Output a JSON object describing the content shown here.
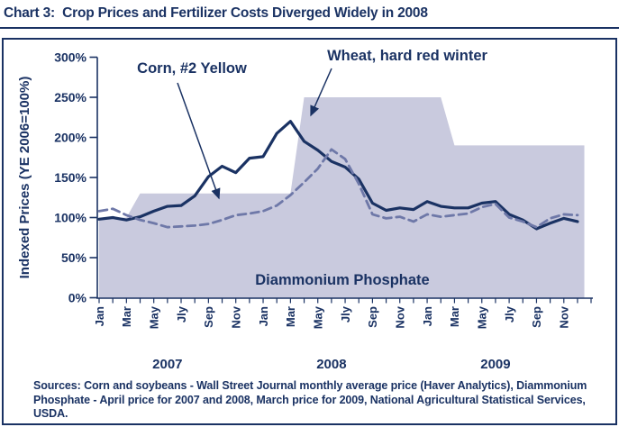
{
  "title": "Chart 3:  Crop Prices and Fertilizer Costs Diverged Widely in 2008",
  "colors": {
    "ink": "#1a3263",
    "wheat_line": "#1a3263",
    "corn_line": "#6e78a8",
    "dap_fill": "#c9cade",
    "background": "#ffffff"
  },
  "chart_data": {
    "type": "line",
    "title": "Chart 3:  Crop Prices and Fertilizer Costs Diverged Widely in 2008",
    "xlabel": "",
    "ylabel": "Indexed Prices (YE 2006=100%)",
    "ylim": [
      0,
      300
    ],
    "grid": false,
    "legend_position": "inline-annotations",
    "ytick_labels": [
      "0%",
      "50%",
      "100%",
      "150%",
      "200%",
      "250%",
      "300%"
    ],
    "month_tick_labels": [
      "Jan",
      "Mar",
      "May",
      "Jly",
      "Sep",
      "Nov"
    ],
    "years": [
      "2007",
      "2008",
      "2009"
    ],
    "x_months": 36,
    "series": [
      {
        "name": "Wheat, hard red winter",
        "type": "line",
        "style": "solid",
        "color": "#1a3263",
        "values": [
          98,
          100,
          97,
          101,
          108,
          114,
          115,
          127,
          151,
          164,
          156,
          174,
          176,
          205,
          220,
          195,
          184,
          170,
          163,
          148,
          118,
          109,
          112,
          110,
          120,
          114,
          112,
          112,
          118,
          120,
          104,
          97,
          86,
          93,
          99,
          95
        ]
      },
      {
        "name": "Corn, #2 Yellow",
        "type": "line",
        "style": "dashed",
        "color": "#6e78a8",
        "values": [
          108,
          111,
          103,
          97,
          93,
          88,
          89,
          90,
          92,
          97,
          103,
          105,
          108,
          115,
          128,
          144,
          161,
          185,
          173,
          142,
          104,
          99,
          101,
          95,
          104,
          101,
          103,
          105,
          113,
          117,
          100,
          95,
          88,
          99,
          104,
          103
        ]
      },
      {
        "name": "Diammonium Phosphate",
        "type": "area",
        "color": "#c9cade",
        "step_points": [
          [
            0,
            100
          ],
          [
            2,
            100
          ],
          [
            3,
            130
          ],
          [
            14,
            130
          ],
          [
            15,
            250
          ],
          [
            25,
            250
          ],
          [
            26,
            190
          ],
          [
            35.5,
            190
          ]
        ]
      }
    ],
    "annotations": {
      "corn": {
        "text": "Corn, #2 Yellow"
      },
      "wheat": {
        "text": "Wheat, hard red winter"
      },
      "area": {
        "text": "Diammonium Phosphate"
      }
    }
  },
  "sources_lines": [
    "Sources: Corn and soybeans - Wall Street Journal monthly average price (Haver Analytics), Diammonium",
    "Phosphate - April price for 2007 and 2008, March price for 2009, National Agricultural Statistical Services,",
    "USDA."
  ]
}
